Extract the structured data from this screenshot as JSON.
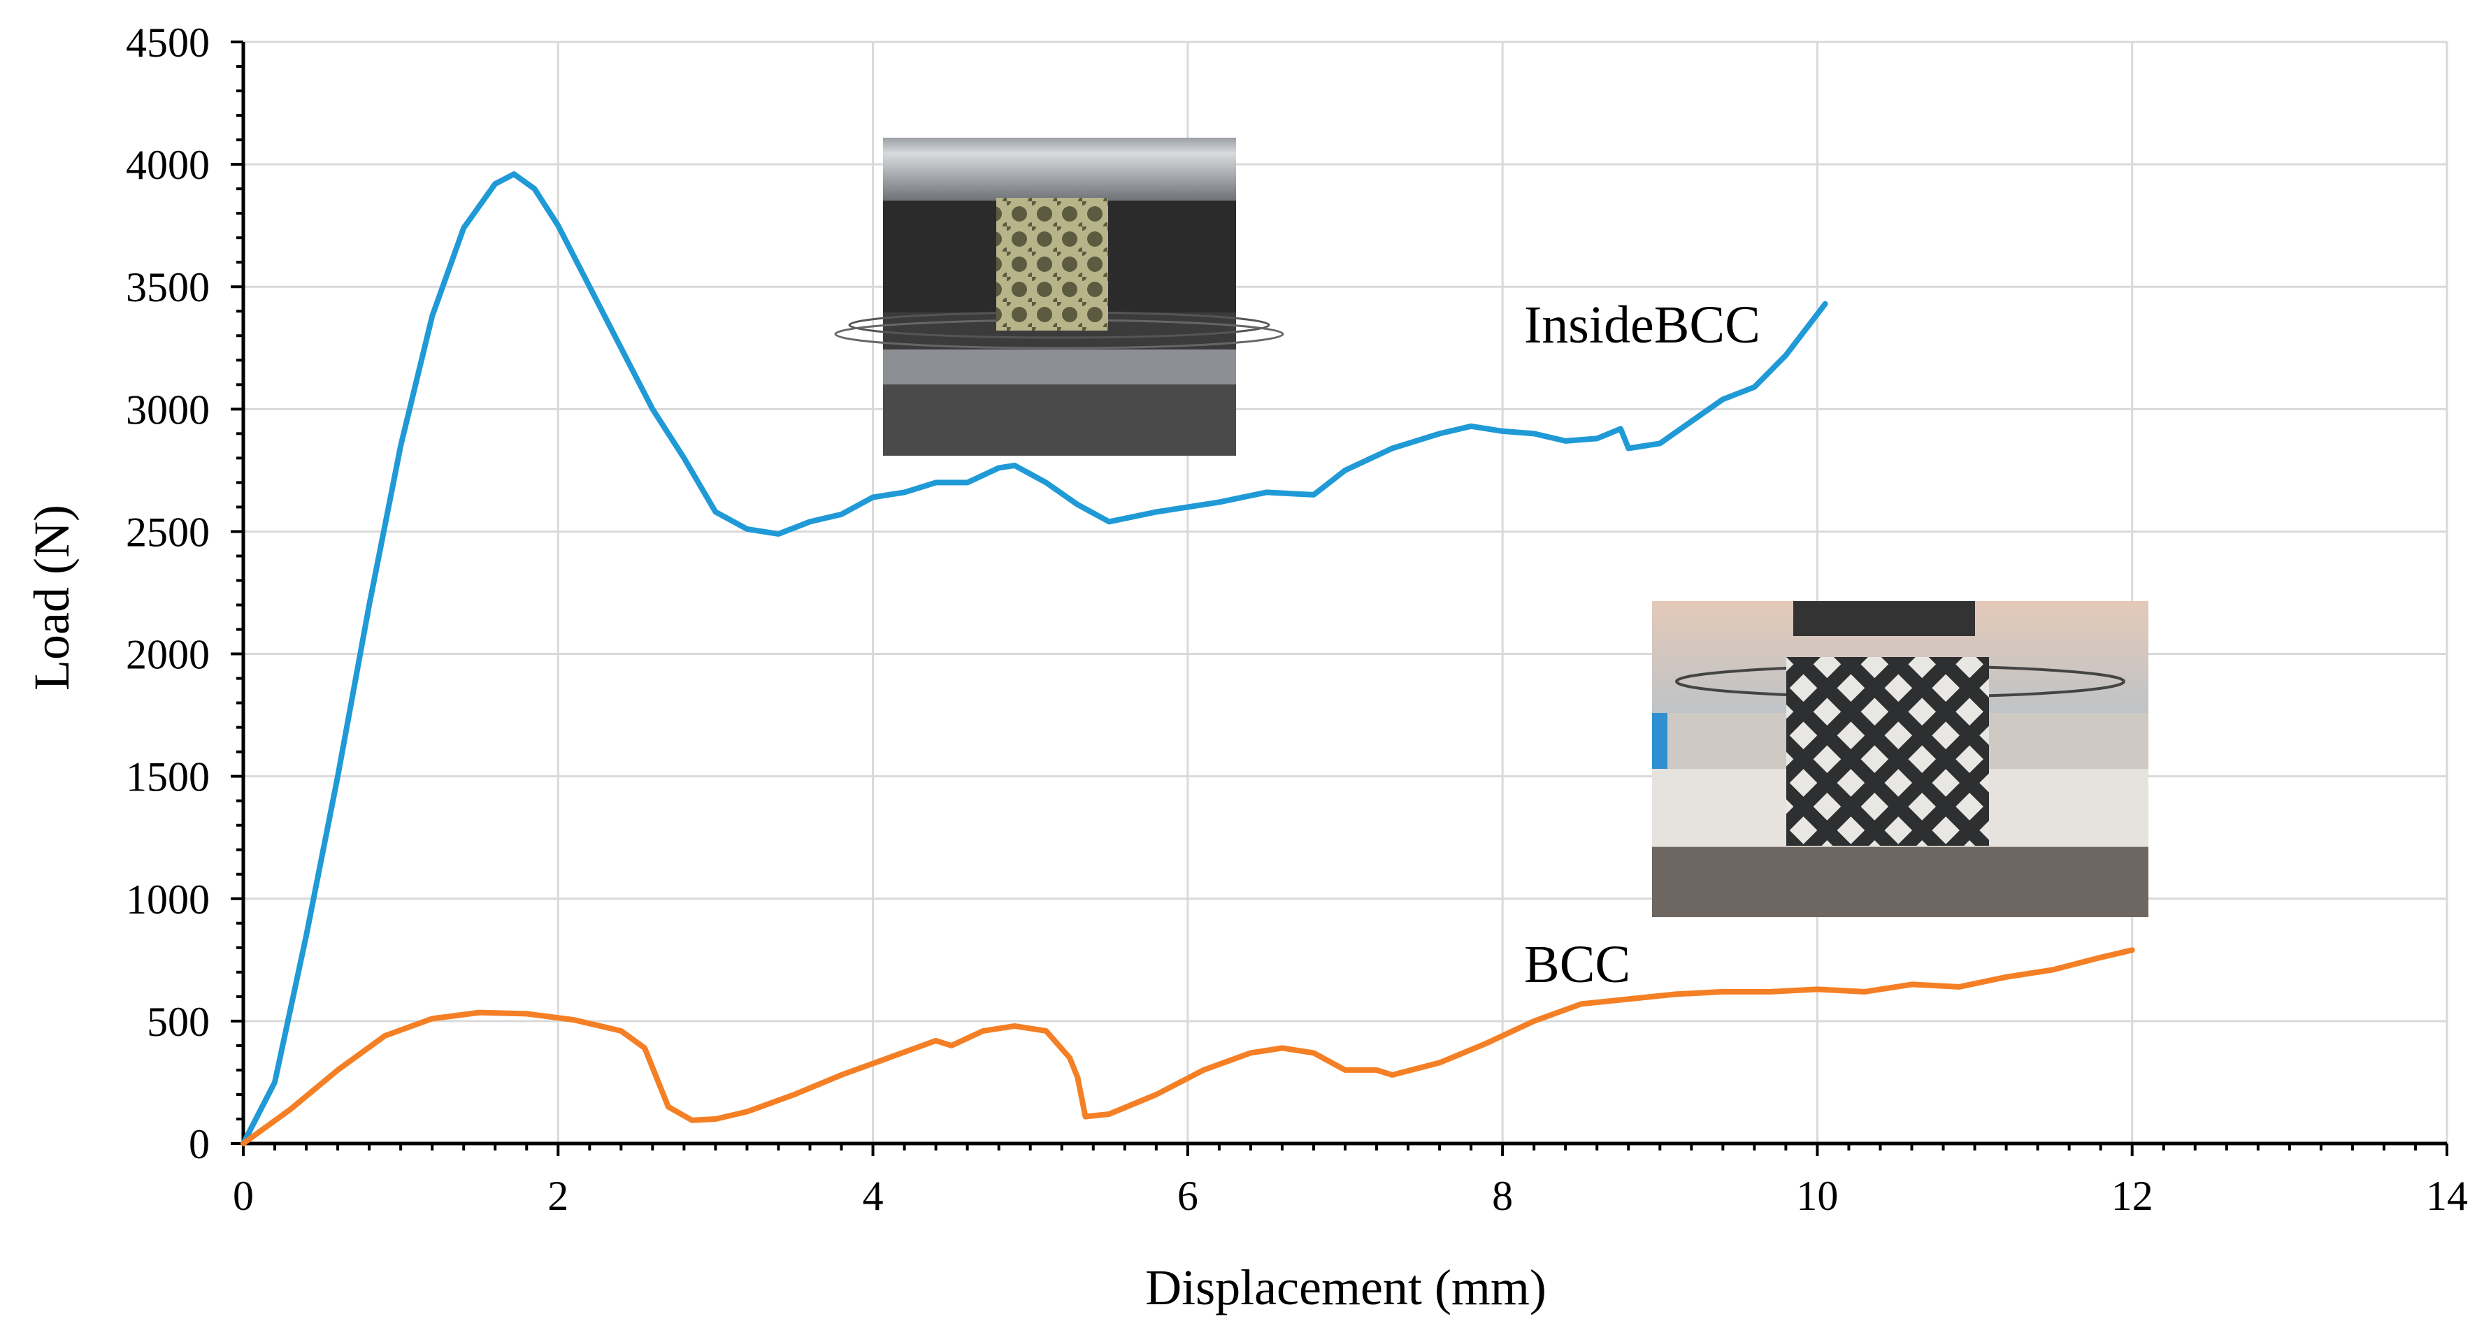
{
  "chart_data": {
    "type": "line",
    "title": "",
    "xlabel": "Displacement (mm)",
    "ylabel": "Load (N)",
    "xlim": [
      0,
      14
    ],
    "ylim": [
      0,
      4500
    ],
    "x_ticks": [
      0,
      2,
      4,
      6,
      8,
      10,
      12,
      14
    ],
    "y_ticks": [
      0,
      500,
      1000,
      1500,
      2000,
      2500,
      3000,
      3500,
      4000,
      4500
    ],
    "grid": true,
    "series": [
      {
        "name": "InsideBCC",
        "color": "#1f9ad6",
        "points": [
          [
            0,
            0
          ],
          [
            0.2,
            250
          ],
          [
            0.4,
            850
          ],
          [
            0.6,
            1500
          ],
          [
            0.8,
            2200
          ],
          [
            1.0,
            2850
          ],
          [
            1.2,
            3380
          ],
          [
            1.4,
            3740
          ],
          [
            1.6,
            3920
          ],
          [
            1.72,
            3960
          ],
          [
            1.85,
            3900
          ],
          [
            2.0,
            3750
          ],
          [
            2.2,
            3500
          ],
          [
            2.4,
            3250
          ],
          [
            2.6,
            3000
          ],
          [
            2.8,
            2800
          ],
          [
            3.0,
            2580
          ],
          [
            3.2,
            2510
          ],
          [
            3.4,
            2490
          ],
          [
            3.6,
            2540
          ],
          [
            3.8,
            2570
          ],
          [
            4.0,
            2640
          ],
          [
            4.2,
            2660
          ],
          [
            4.4,
            2700
          ],
          [
            4.6,
            2700
          ],
          [
            4.8,
            2760
          ],
          [
            4.9,
            2770
          ],
          [
            5.1,
            2700
          ],
          [
            5.3,
            2610
          ],
          [
            5.5,
            2540
          ],
          [
            5.8,
            2580
          ],
          [
            6.2,
            2620
          ],
          [
            6.5,
            2660
          ],
          [
            6.8,
            2650
          ],
          [
            7.0,
            2750
          ],
          [
            7.3,
            2840
          ],
          [
            7.6,
            2900
          ],
          [
            7.8,
            2930
          ],
          [
            8.0,
            2910
          ],
          [
            8.2,
            2900
          ],
          [
            8.4,
            2870
          ],
          [
            8.6,
            2880
          ],
          [
            8.75,
            2920
          ],
          [
            8.8,
            2840
          ],
          [
            9.0,
            2860
          ],
          [
            9.2,
            2950
          ],
          [
            9.4,
            3040
          ],
          [
            9.6,
            3090
          ],
          [
            9.8,
            3220
          ],
          [
            10.05,
            3430
          ]
        ],
        "label_position": "upper-right of curve end"
      },
      {
        "name": "BCC",
        "color": "#f57f25",
        "points": [
          [
            0,
            0
          ],
          [
            0.3,
            140
          ],
          [
            0.6,
            300
          ],
          [
            0.9,
            440
          ],
          [
            1.2,
            510
          ],
          [
            1.5,
            535
          ],
          [
            1.8,
            530
          ],
          [
            2.1,
            505
          ],
          [
            2.4,
            460
          ],
          [
            2.55,
            390
          ],
          [
            2.7,
            150
          ],
          [
            2.85,
            95
          ],
          [
            3.0,
            100
          ],
          [
            3.2,
            130
          ],
          [
            3.5,
            200
          ],
          [
            3.8,
            280
          ],
          [
            4.1,
            350
          ],
          [
            4.4,
            420
          ],
          [
            4.5,
            400
          ],
          [
            4.7,
            460
          ],
          [
            4.9,
            480
          ],
          [
            5.1,
            460
          ],
          [
            5.25,
            350
          ],
          [
            5.3,
            270
          ],
          [
            5.35,
            110
          ],
          [
            5.5,
            120
          ],
          [
            5.8,
            200
          ],
          [
            6.1,
            300
          ],
          [
            6.4,
            370
          ],
          [
            6.6,
            390
          ],
          [
            6.8,
            370
          ],
          [
            7.0,
            300
          ],
          [
            7.2,
            300
          ],
          [
            7.3,
            280
          ],
          [
            7.6,
            330
          ],
          [
            7.9,
            410
          ],
          [
            8.2,
            500
          ],
          [
            8.5,
            570
          ],
          [
            8.8,
            590
          ],
          [
            9.1,
            610
          ],
          [
            9.4,
            620
          ],
          [
            9.7,
            620
          ],
          [
            10.0,
            630
          ],
          [
            10.3,
            620
          ],
          [
            10.6,
            650
          ],
          [
            10.9,
            640
          ],
          [
            11.2,
            680
          ],
          [
            11.5,
            710
          ],
          [
            11.8,
            760
          ],
          [
            12.0,
            790
          ]
        ],
        "label_position": "above curve near x=8.8"
      }
    ],
    "annotations": [
      "InsideBCC",
      "BCC"
    ]
  },
  "insets": [
    {
      "name": "InsideBCC lattice compression photo",
      "near_series": "InsideBCC"
    },
    {
      "name": "BCC lattice compression photo",
      "near_series": "BCC"
    }
  ]
}
